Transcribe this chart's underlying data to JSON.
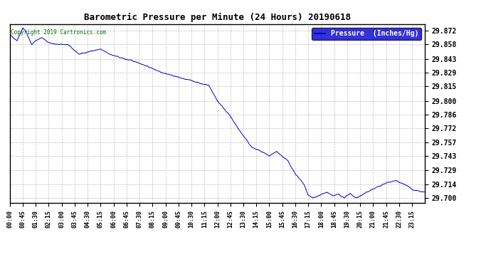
{
  "title": "Barometric Pressure per Minute (24 Hours) 20190618",
  "copyright": "Copyright 2019 Cartronics.com",
  "legend_label": "Pressure  (Inches/Hg)",
  "line_color": "#0000CC",
  "background_color": "#ffffff",
  "grid_color": "#b0b0b0",
  "yticks": [
    29.7,
    29.714,
    29.729,
    29.743,
    29.757,
    29.772,
    29.786,
    29.8,
    29.815,
    29.829,
    29.843,
    29.858,
    29.872
  ],
  "ylim": [
    29.695,
    29.879
  ],
  "xtick_labels": [
    "00:00",
    "00:45",
    "01:30",
    "02:15",
    "03:00",
    "03:45",
    "04:30",
    "05:15",
    "06:00",
    "06:45",
    "07:30",
    "08:15",
    "09:00",
    "09:45",
    "10:30",
    "11:15",
    "12:00",
    "12:45",
    "13:30",
    "14:15",
    "15:00",
    "15:45",
    "16:30",
    "17:15",
    "18:00",
    "18:45",
    "19:30",
    "20:15",
    "21:00",
    "21:45",
    "22:30",
    "23:15"
  ],
  "x_pts": [
    0,
    25,
    45,
    55,
    75,
    90,
    110,
    135,
    160,
    200,
    240,
    280,
    315,
    355,
    400,
    440,
    480,
    530,
    565,
    610,
    630,
    660,
    690,
    720,
    760,
    800,
    840,
    865,
    900,
    925,
    945,
    965,
    990,
    1020,
    1035,
    1050,
    1075,
    1100,
    1120,
    1140,
    1160,
    1180,
    1200,
    1215,
    1250,
    1280,
    1310,
    1340,
    1370,
    1400,
    1420,
    1439
  ],
  "y_pts": [
    29.868,
    29.862,
    29.875,
    29.872,
    29.858,
    29.862,
    29.865,
    29.86,
    29.858,
    29.858,
    29.848,
    29.851,
    29.853,
    29.847,
    29.843,
    29.84,
    29.835,
    29.829,
    29.826,
    29.822,
    29.821,
    29.818,
    29.816,
    29.8,
    29.786,
    29.768,
    29.752,
    29.749,
    29.743,
    29.748,
    29.743,
    29.738,
    29.725,
    29.714,
    29.703,
    29.7,
    29.703,
    29.706,
    29.702,
    29.704,
    29.7,
    29.705,
    29.7,
    29.702,
    29.708,
    29.712,
    29.716,
    29.718,
    29.714,
    29.708,
    29.707,
    29.706
  ]
}
